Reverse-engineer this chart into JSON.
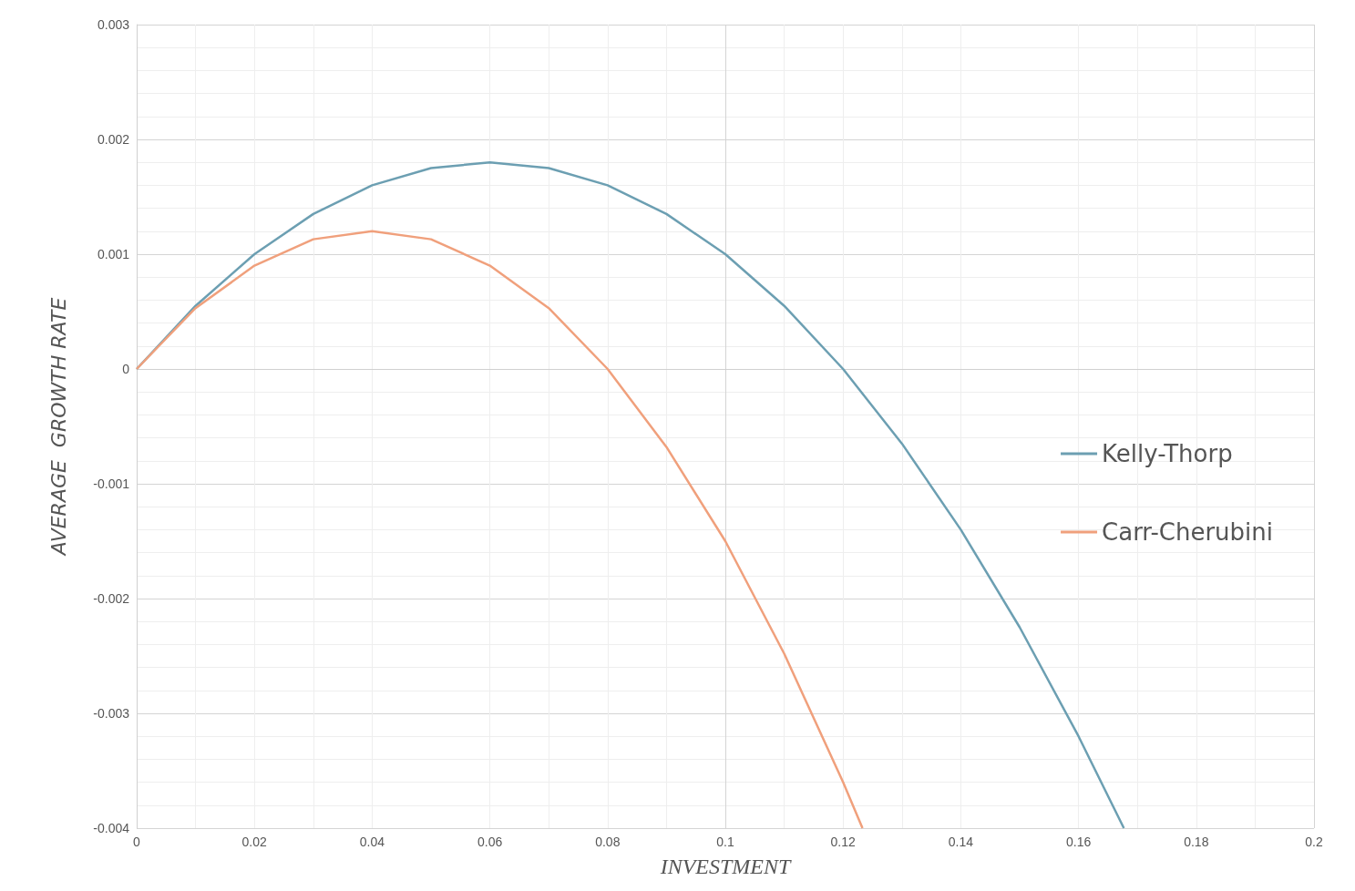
{
  "chart_data": {
    "type": "line",
    "xlabel": "INVESTMENT",
    "ylabel": "AVERAGE  GROWTH RATE",
    "xlim": [
      0,
      0.2
    ],
    "xticks": [
      0,
      0.02,
      0.04,
      0.06,
      0.08,
      0.1,
      0.12,
      0.14,
      0.16,
      0.18,
      0.2
    ],
    "ylim": [
      -0.004,
      0.003
    ],
    "yticks": [
      -0.004,
      -0.003,
      -0.002,
      -0.001,
      0,
      0.001,
      0.002,
      0.003
    ],
    "grid": true,
    "legend": "right",
    "marker": "none",
    "line_style": "solid",
    "series": [
      {
        "name": "Kelly-Thorp",
        "color": "#6c9fb2",
        "x": [
          0,
          0.01,
          0.02,
          0.03,
          0.04,
          0.05,
          0.06,
          0.07,
          0.08,
          0.09,
          0.1,
          0.11,
          0.12,
          0.13,
          0.14,
          0.15,
          0.16,
          0.1677
        ],
        "values": [
          0,
          0.00055,
          0.001,
          0.00135,
          0.0016,
          0.00175,
          0.0018,
          0.00175,
          0.0016,
          0.00135,
          0.001,
          0.00055,
          0,
          -0.00065,
          -0.0014,
          -0.00225,
          -0.0032,
          -0.004
        ]
      },
      {
        "name": "Carr-Cherubini",
        "color": "#f0a07c",
        "x": [
          0,
          0.01,
          0.02,
          0.03,
          0.04,
          0.05,
          0.06,
          0.07,
          0.08,
          0.09,
          0.1,
          0.11,
          0.12,
          0.1233
        ],
        "values": [
          0,
          0.00053,
          0.0009,
          0.00113,
          0.0012,
          0.00113,
          0.0009,
          0.00053,
          0,
          -0.00068,
          -0.0015,
          -0.00248,
          -0.0036,
          -0.004
        ]
      }
    ]
  }
}
